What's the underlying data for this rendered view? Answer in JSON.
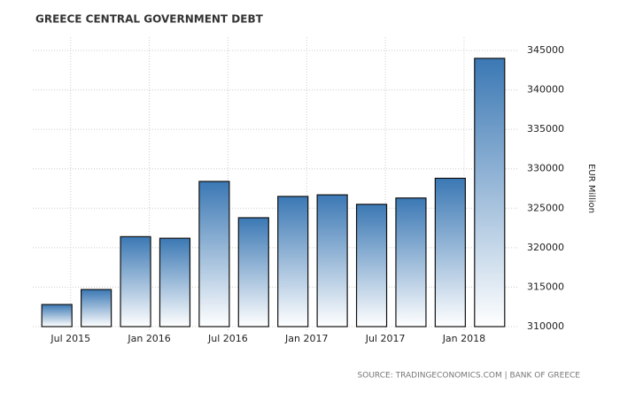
{
  "chart_data": {
    "type": "bar",
    "title": "GREECE CENTRAL GOVERNMENT DEBT",
    "y_axis_label": "EUR Million",
    "source": "SOURCE: TRADINGECONOMICS.COM | BANK OF GREECE",
    "categories": [
      "Jul 2015",
      null,
      "Jan 2016",
      null,
      "Jul 2016",
      null,
      "Jan 2017",
      null,
      "Jul 2017",
      null,
      "Jan 2018",
      null
    ],
    "values": [
      312800,
      314700,
      321400,
      321200,
      328400,
      323800,
      326500,
      326700,
      325500,
      326300,
      328800,
      344000
    ],
    "color": "#3b78b4",
    "ylim": [
      310000,
      345000
    ],
    "yticks": [
      310000,
      315000,
      320000,
      325000,
      330000,
      335000,
      340000,
      345000
    ],
    "grid": true
  }
}
